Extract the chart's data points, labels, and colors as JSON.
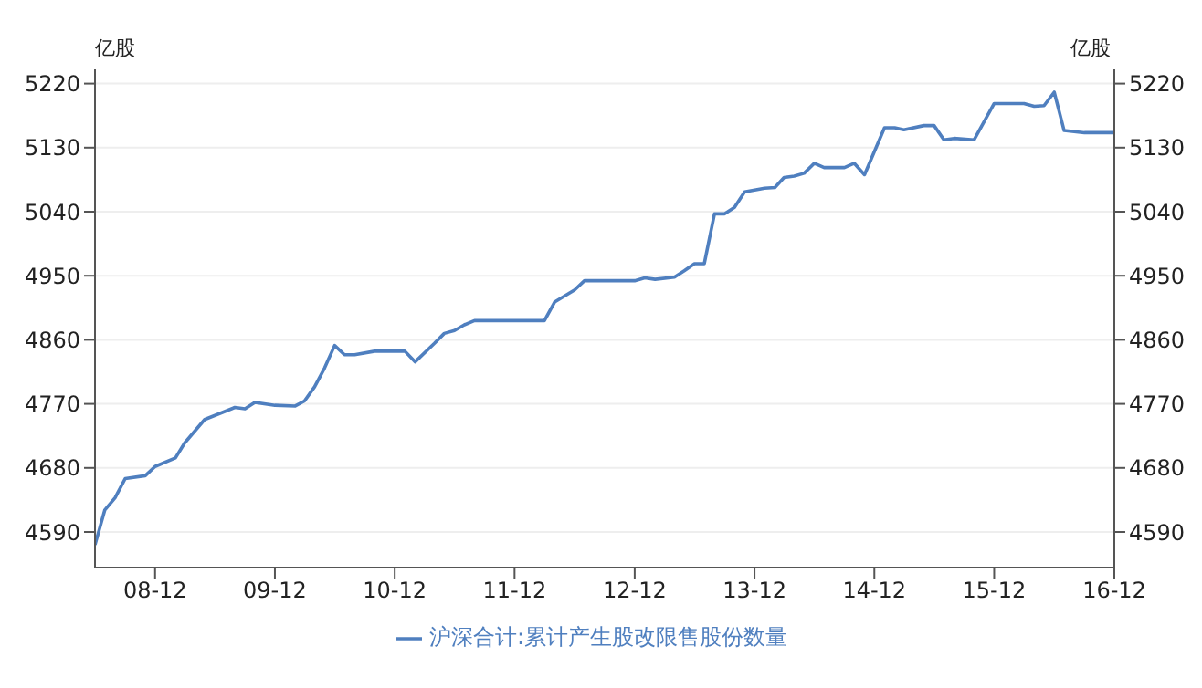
{
  "chart_data": {
    "type": "line",
    "ylabel": "亿股",
    "y2label": "亿股",
    "x": [
      "2008-06",
      "2008-07",
      "2008-08",
      "2008-09",
      "2008-11",
      "2008-12",
      "2009-02",
      "2009-03",
      "2009-05",
      "2009-08",
      "2009-09",
      "2009-10",
      "2009-12",
      "2010-02",
      "2010-03",
      "2010-04",
      "2010-05",
      "2010-06",
      "2010-07",
      "2010-08",
      "2010-10",
      "2011-01",
      "2011-02",
      "2011-04",
      "2011-05",
      "2011-06",
      "2011-07",
      "2011-08",
      "2012-03",
      "2012-04",
      "2012-06",
      "2012-07",
      "2012-12",
      "2013-01",
      "2013-02",
      "2013-04",
      "2013-05",
      "2013-06",
      "2013-07",
      "2013-08",
      "2013-09",
      "2013-10",
      "2013-11",
      "2014-01",
      "2014-02",
      "2014-03",
      "2014-04",
      "2014-05",
      "2014-06",
      "2014-07",
      "2014-09",
      "2014-10",
      "2014-11",
      "2015-01",
      "2015-02",
      "2015-03",
      "2015-05",
      "2015-06",
      "2015-07",
      "2015-08",
      "2015-10",
      "2015-12",
      "2016-03",
      "2016-04",
      "2016-05",
      "2016-06",
      "2016-07",
      "2016-09",
      "2016-12"
    ],
    "series": [
      {
        "name": "沪深合计:累计产生股改限售股份数量",
        "color": "#4f7fbf",
        "values": [
          4572,
          4621,
          4638,
          4665,
          4669,
          4682,
          4694,
          4715,
          4748,
          4765,
          4763,
          4772,
          4768,
          4767,
          4774,
          4794,
          4820,
          4852,
          4839,
          4839,
          4844,
          4844,
          4829,
          4855,
          4869,
          4873,
          4881,
          4887,
          4887,
          4913,
          4930,
          4943,
          4943,
          4947,
          4945,
          4948,
          4957,
          4967,
          4967,
          5037,
          5037,
          5046,
          5068,
          5073,
          5074,
          5088,
          5090,
          5094,
          5108,
          5102,
          5102,
          5108,
          5092,
          5158,
          5158,
          5155,
          5161,
          5161,
          5141,
          5143,
          5141,
          5192,
          5192,
          5188,
          5189,
          5208,
          5154,
          5151,
          5151
        ]
      }
    ],
    "xlim": [
      "2008-06",
      "2016-12"
    ],
    "xticks": [
      {
        "value": "2008-12",
        "label": "08-12"
      },
      {
        "value": "2009-12",
        "label": "09-12"
      },
      {
        "value": "2010-12",
        "label": "10-12"
      },
      {
        "value": "2011-12",
        "label": "11-12"
      },
      {
        "value": "2012-12",
        "label": "12-12"
      },
      {
        "value": "2013-12",
        "label": "13-12"
      },
      {
        "value": "2014-12",
        "label": "14-12"
      },
      {
        "value": "2015-12",
        "label": "15-12"
      },
      {
        "value": "2016-12",
        "label": "16-12"
      }
    ],
    "ylim": [
      4540,
      5240
    ],
    "yticks": [
      4590,
      4680,
      4770,
      4860,
      4950,
      5040,
      5130,
      5220
    ],
    "y2lim": [
      4540,
      5240
    ],
    "y2ticks": [
      4590,
      4680,
      4770,
      4860,
      4950,
      5040,
      5130,
      5220
    ],
    "grid": "y",
    "legend": "bottom",
    "marker": "none",
    "line_style": "solid"
  }
}
